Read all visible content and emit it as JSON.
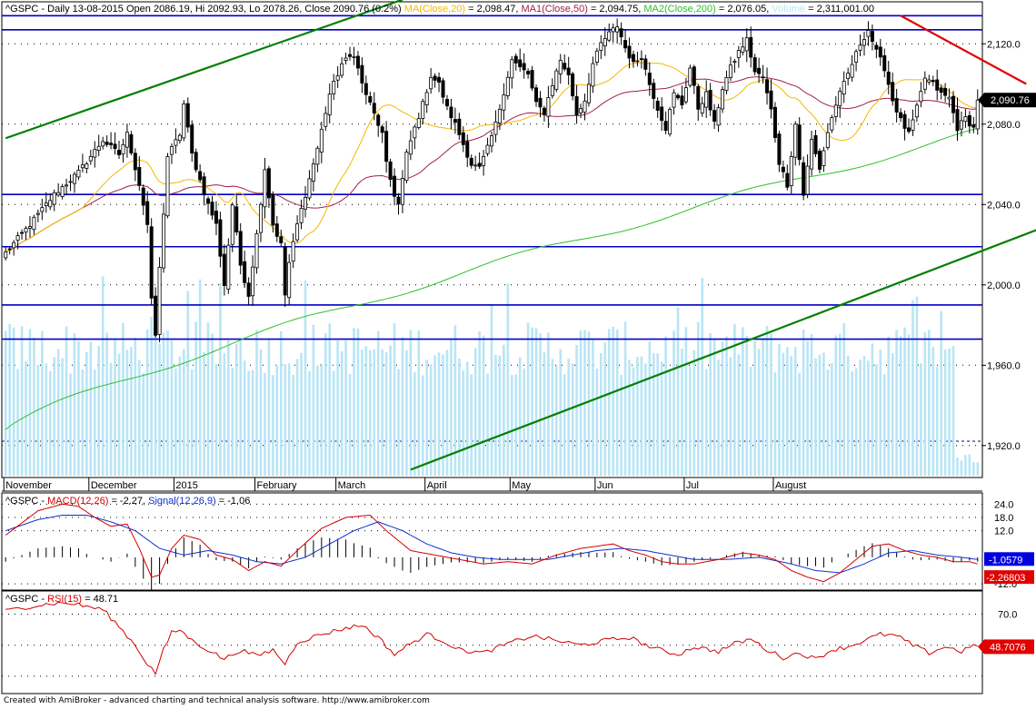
{
  "title": {
    "symbol": "^GSPC",
    "period": "Daily 13-08-2015",
    "ohlc": "Open 2086.19, Hi 2092.93, Lo 2078.26, Close 2090.76 (0.2%)",
    "ma_label": "MA(Close,20)",
    "ma_value": "= 2,098.47,",
    "ma1_label": "MA1(Close,50)",
    "ma1_value": "= 2,094.75,",
    "ma2_label": "MA2(Close,200)",
    "ma2_value": "= 2,076.05,",
    "vol_label": "Volume",
    "vol_value": "= 2,311,001.00"
  },
  "macd_header": {
    "symbol": "^GSPC -",
    "macd_label": "MACD(12,26)",
    "macd_value": "= -2.27,",
    "signal_label": "Signal(12,26,9)",
    "signal_value": "= -1.06"
  },
  "rsi_header": {
    "symbol": "^GSPC -",
    "rsi_label": "RSI(15)",
    "rsi_value": "= 48.71"
  },
  "footer": "Created with AmiBroker - advanced charting and technical analysis software. http://www.amibroker.com",
  "colors": {
    "bull": "#ffffff",
    "bear": "#000000",
    "ma20": "#f5b800",
    "ma50": "#a0204a",
    "ma200": "#2ec02e",
    "volume": "#b9e5f5",
    "hline": "#0000c0",
    "trend_green": "#008000",
    "trend_red": "#e00000",
    "macd": "#d00000",
    "signal": "#1030d0",
    "rsi": "#d00000",
    "price_badge": "#000000",
    "signal_badge": "#0000e0",
    "macd_badge": "#e00000"
  },
  "chart_data": [
    {
      "type": "candlestick",
      "symbol": "^GSPC",
      "period": "Nov 2014 - Aug 2015, daily",
      "ylim": [
        1905,
        2140
      ],
      "y_ticks": [
        "2,120.0",
        "2,080.0",
        "2,040.0",
        "2,000.0",
        "1,960.0",
        "1,920.0"
      ],
      "x_labels": [
        "November",
        "December",
        "2015",
        "February",
        "March",
        "April",
        "May",
        "Jun",
        "Jul",
        "August"
      ],
      "last_close_label": "2,090.76",
      "horizontal_lines": [
        2134,
        2127,
        2045,
        2019,
        1990,
        1973
      ],
      "close_path": [
        [
          0,
          2016
        ],
        [
          6,
          2030
        ],
        [
          12,
          2045
        ],
        [
          18,
          2056
        ],
        [
          24,
          2072
        ],
        [
          28,
          2065
        ],
        [
          30,
          2075
        ],
        [
          33,
          2050
        ],
        [
          35,
          2030
        ],
        [
          36,
          1992
        ],
        [
          37,
          1975
        ],
        [
          38,
          2008
        ],
        [
          40,
          2064
        ],
        [
          43,
          2075
        ],
        [
          44,
          2090
        ],
        [
          46,
          2065
        ],
        [
          48,
          2052
        ],
        [
          50,
          2040
        ],
        [
          52,
          2030
        ],
        [
          53,
          2015
        ],
        [
          54,
          2000
        ],
        [
          56,
          2040
        ],
        [
          58,
          2010
        ],
        [
          60,
          1995
        ],
        [
          62,
          2025
        ],
        [
          64,
          2058
        ],
        [
          66,
          2030
        ],
        [
          68,
          2020
        ],
        [
          69,
          1995
        ],
        [
          70,
          2011
        ],
        [
          72,
          2030
        ],
        [
          74,
          2045
        ],
        [
          77,
          2068
        ],
        [
          80,
          2095
        ],
        [
          83,
          2110
        ],
        [
          86,
          2115
        ],
        [
          88,
          2100
        ],
        [
          89,
          2095
        ],
        [
          91,
          2085
        ],
        [
          93,
          2075
        ],
        [
          94,
          2060
        ],
        [
          96,
          2045
        ],
        [
          97,
          2040
        ],
        [
          99,
          2065
        ],
        [
          101,
          2078
        ],
        [
          103,
          2090
        ],
        [
          105,
          2104
        ],
        [
          107,
          2100
        ],
        [
          109,
          2088
        ],
        [
          111,
          2080
        ],
        [
          113,
          2070
        ],
        [
          115,
          2060
        ],
        [
          117,
          2058
        ],
        [
          119,
          2068
        ],
        [
          121,
          2080
        ],
        [
          123,
          2096
        ],
        [
          125,
          2112
        ],
        [
          127,
          2108
        ],
        [
          129,
          2105
        ],
        [
          131,
          2090
        ],
        [
          133,
          2086
        ],
        [
          135,
          2100
        ],
        [
          137,
          2112
        ],
        [
          139,
          2104
        ],
        [
          141,
          2085
        ],
        [
          143,
          2092
        ],
        [
          145,
          2110
        ],
        [
          147,
          2120
        ],
        [
          149,
          2125
        ],
        [
          151,
          2129
        ],
        [
          153,
          2118
        ],
        [
          155,
          2110
        ],
        [
          157,
          2114
        ],
        [
          159,
          2100
        ],
        [
          161,
          2088
        ],
        [
          163,
          2078
        ],
        [
          165,
          2095
        ],
        [
          167,
          2090
        ],
        [
          169,
          2108
        ],
        [
          171,
          2088
        ],
        [
          173,
          2095
        ],
        [
          175,
          2080
        ],
        [
          177,
          2098
        ],
        [
          179,
          2108
        ],
        [
          181,
          2116
        ],
        [
          183,
          2122
        ],
        [
          185,
          2106
        ],
        [
          187,
          2103
        ],
        [
          189,
          2087
        ],
        [
          191,
          2061
        ],
        [
          193,
          2050
        ],
        [
          195,
          2080
        ],
        [
          197,
          2045
        ],
        [
          199,
          2072
        ],
        [
          201,
          2058
        ],
        [
          203,
          2076
        ],
        [
          205,
          2090
        ],
        [
          207,
          2100
        ],
        [
          209,
          2110
        ],
        [
          211,
          2120
        ],
        [
          213,
          2127
        ],
        [
          215,
          2116
        ],
        [
          217,
          2108
        ],
        [
          219,
          2092
        ],
        [
          221,
          2082
        ],
        [
          223,
          2075
        ],
        [
          225,
          2088
        ],
        [
          227,
          2103
        ],
        [
          229,
          2100
        ],
        [
          231,
          2095
        ],
        [
          233,
          2093
        ],
        [
          235,
          2078
        ],
        [
          237,
          2083
        ],
        [
          239,
          2078
        ],
        [
          240,
          2092
        ]
      ],
      "trendlines": [
        {
          "from": [
            0,
            2073
          ],
          "to": [
            98,
            2142
          ]
        },
        {
          "from": [
            100,
            1908
          ],
          "to": [
            258,
            2030
          ]
        },
        {
          "from": [
            221,
            2134
          ],
          "to": [
            252,
            2100
          ]
        }
      ],
      "series": [
        {
          "name": "MA(Close,20)",
          "value": 2098.47
        },
        {
          "name": "MA1(Close,50)",
          "value": 2094.75
        },
        {
          "name": "MA2(Close,200)",
          "value": 2076.05
        },
        {
          "name": "Volume",
          "value": 2311001.0
        }
      ]
    },
    {
      "type": "line",
      "title": "MACD(12,26)",
      "ylim": [
        -14,
        27
      ],
      "y_ticks": [
        "24.0",
        "18.0",
        "12.0",
        "-12.0"
      ],
      "macd_path": [
        [
          0,
          10
        ],
        [
          8,
          21
        ],
        [
          14,
          24
        ],
        [
          18,
          23
        ],
        [
          22,
          18
        ],
        [
          26,
          14
        ],
        [
          30,
          15
        ],
        [
          33,
          4
        ],
        [
          36,
          -9
        ],
        [
          38,
          -8
        ],
        [
          41,
          4
        ],
        [
          44,
          10
        ],
        [
          48,
          8
        ],
        [
          52,
          1
        ],
        [
          56,
          -1
        ],
        [
          60,
          -6
        ],
        [
          64,
          -2
        ],
        [
          68,
          -4
        ],
        [
          72,
          3
        ],
        [
          78,
          13
        ],
        [
          84,
          18
        ],
        [
          90,
          19
        ],
        [
          94,
          12
        ],
        [
          100,
          3
        ],
        [
          106,
          1
        ],
        [
          112,
          -1
        ],
        [
          118,
          -3
        ],
        [
          124,
          -2
        ],
        [
          130,
          -3
        ],
        [
          136,
          1
        ],
        [
          142,
          4
        ],
        [
          146,
          5
        ],
        [
          150,
          6
        ],
        [
          154,
          3
        ],
        [
          158,
          1
        ],
        [
          162,
          -2
        ],
        [
          166,
          -3
        ],
        [
          170,
          -3
        ],
        [
          176,
          -1
        ],
        [
          182,
          2
        ],
        [
          186,
          1
        ],
        [
          190,
          -1
        ],
        [
          194,
          -6
        ],
        [
          198,
          -9
        ],
        [
          202,
          -11
        ],
        [
          206,
          -7
        ],
        [
          210,
          -1
        ],
        [
          214,
          5
        ],
        [
          218,
          6
        ],
        [
          222,
          3
        ],
        [
          226,
          1
        ],
        [
          230,
          0
        ],
        [
          234,
          -2
        ],
        [
          238,
          -2
        ],
        [
          240,
          -3
        ]
      ],
      "signal_path": [
        [
          0,
          12
        ],
        [
          8,
          17
        ],
        [
          14,
          19
        ],
        [
          20,
          19
        ],
        [
          26,
          16
        ],
        [
          32,
          12
        ],
        [
          38,
          4
        ],
        [
          44,
          1
        ],
        [
          50,
          3
        ],
        [
          56,
          1
        ],
        [
          62,
          -2
        ],
        [
          68,
          -3
        ],
        [
          74,
          0
        ],
        [
          80,
          6
        ],
        [
          86,
          12
        ],
        [
          92,
          16
        ],
        [
          98,
          12
        ],
        [
          104,
          6
        ],
        [
          110,
          2
        ],
        [
          116,
          0
        ],
        [
          122,
          -1
        ],
        [
          128,
          -1
        ],
        [
          134,
          -1
        ],
        [
          140,
          1
        ],
        [
          146,
          3
        ],
        [
          152,
          4
        ],
        [
          158,
          3
        ],
        [
          164,
          1
        ],
        [
          170,
          -1
        ],
        [
          178,
          -1
        ],
        [
          186,
          0
        ],
        [
          194,
          -3
        ],
        [
          200,
          -6
        ],
        [
          206,
          -7
        ],
        [
          212,
          -3
        ],
        [
          218,
          2
        ],
        [
          224,
          3
        ],
        [
          230,
          1
        ],
        [
          236,
          0
        ],
        [
          240,
          -1
        ]
      ],
      "badges": [
        "-1.0579",
        "-2.26803"
      ],
      "series": [
        {
          "name": "MACD(12,26)",
          "value": -2.27
        },
        {
          "name": "Signal(12,26,9)",
          "value": -1.06
        }
      ]
    },
    {
      "type": "line",
      "title": "RSI(15)",
      "ylim": [
        20,
        82
      ],
      "y_ticks": [
        "70.0"
      ],
      "rsi_path": [
        [
          0,
          72
        ],
        [
          6,
          75
        ],
        [
          12,
          77
        ],
        [
          16,
          77
        ],
        [
          20,
          75
        ],
        [
          24,
          73
        ],
        [
          28,
          62
        ],
        [
          32,
          50
        ],
        [
          35,
          38
        ],
        [
          37,
          32
        ],
        [
          39,
          47
        ],
        [
          41,
          58
        ],
        [
          43,
          60
        ],
        [
          46,
          53
        ],
        [
          50,
          47
        ],
        [
          54,
          41
        ],
        [
          58,
          47
        ],
        [
          62,
          43
        ],
        [
          66,
          47
        ],
        [
          69,
          38
        ],
        [
          72,
          52
        ],
        [
          78,
          57
        ],
        [
          84,
          61
        ],
        [
          88,
          63
        ],
        [
          92,
          55
        ],
        [
          96,
          44
        ],
        [
          100,
          51
        ],
        [
          104,
          57
        ],
        [
          108,
          53
        ],
        [
          112,
          47
        ],
        [
          118,
          45
        ],
        [
          124,
          51
        ],
        [
          130,
          56
        ],
        [
          136,
          53
        ],
        [
          142,
          50
        ],
        [
          148,
          53
        ],
        [
          154,
          55
        ],
        [
          160,
          48
        ],
        [
          166,
          44
        ],
        [
          170,
          49
        ],
        [
          176,
          46
        ],
        [
          180,
          51
        ],
        [
          184,
          54
        ],
        [
          188,
          47
        ],
        [
          192,
          42
        ],
        [
          196,
          45
        ],
        [
          200,
          41
        ],
        [
          204,
          47
        ],
        [
          208,
          49
        ],
        [
          212,
          53
        ],
        [
          216,
          57
        ],
        [
          220,
          56
        ],
        [
          224,
          50
        ],
        [
          228,
          45
        ],
        [
          232,
          49
        ],
        [
          236,
          46
        ],
        [
          238,
          49
        ],
        [
          240,
          49
        ]
      ],
      "badge": "48.7076",
      "series": [
        {
          "name": "RSI(15)",
          "value": 48.71
        }
      ]
    }
  ]
}
